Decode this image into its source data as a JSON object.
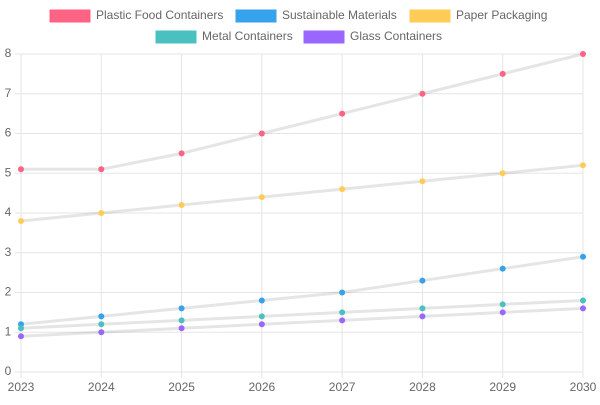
{
  "chart_data": {
    "type": "line",
    "x": [
      2023,
      2024,
      2025,
      2026,
      2027,
      2028,
      2029,
      2030
    ],
    "series": [
      {
        "name": "Plastic Food Containers",
        "color": "#ff6384",
        "values": [
          5.1,
          5.1,
          5.5,
          6.0,
          6.5,
          7.0,
          7.5,
          8.0
        ]
      },
      {
        "name": "Sustainable Materials",
        "color": "#36a2eb",
        "values": [
          1.2,
          1.4,
          1.6,
          1.8,
          2.0,
          2.3,
          2.6,
          2.9
        ]
      },
      {
        "name": "Paper Packaging",
        "color": "#ffcd56",
        "values": [
          3.8,
          4.0,
          4.2,
          4.4,
          4.6,
          4.8,
          5.0,
          5.2
        ]
      },
      {
        "name": "Metal Containers",
        "color": "#4bc0c0",
        "values": [
          1.1,
          1.2,
          1.3,
          1.4,
          1.5,
          1.6,
          1.7,
          1.8
        ]
      },
      {
        "name": "Glass Containers",
        "color": "#9966ff",
        "values": [
          0.9,
          1.0,
          1.1,
          1.2,
          1.3,
          1.4,
          1.5,
          1.6
        ]
      }
    ],
    "xlim": [
      2023,
      2030
    ],
    "xticks": [
      2023,
      2024,
      2025,
      2026,
      2027,
      2028,
      2029,
      2030
    ],
    "ylim": [
      0,
      8
    ],
    "yticks": [
      0,
      1,
      2,
      3,
      4,
      5,
      6,
      7,
      8
    ],
    "grid": true,
    "legend": "top",
    "line_color": "rgba(0,0,0,0.1)"
  }
}
